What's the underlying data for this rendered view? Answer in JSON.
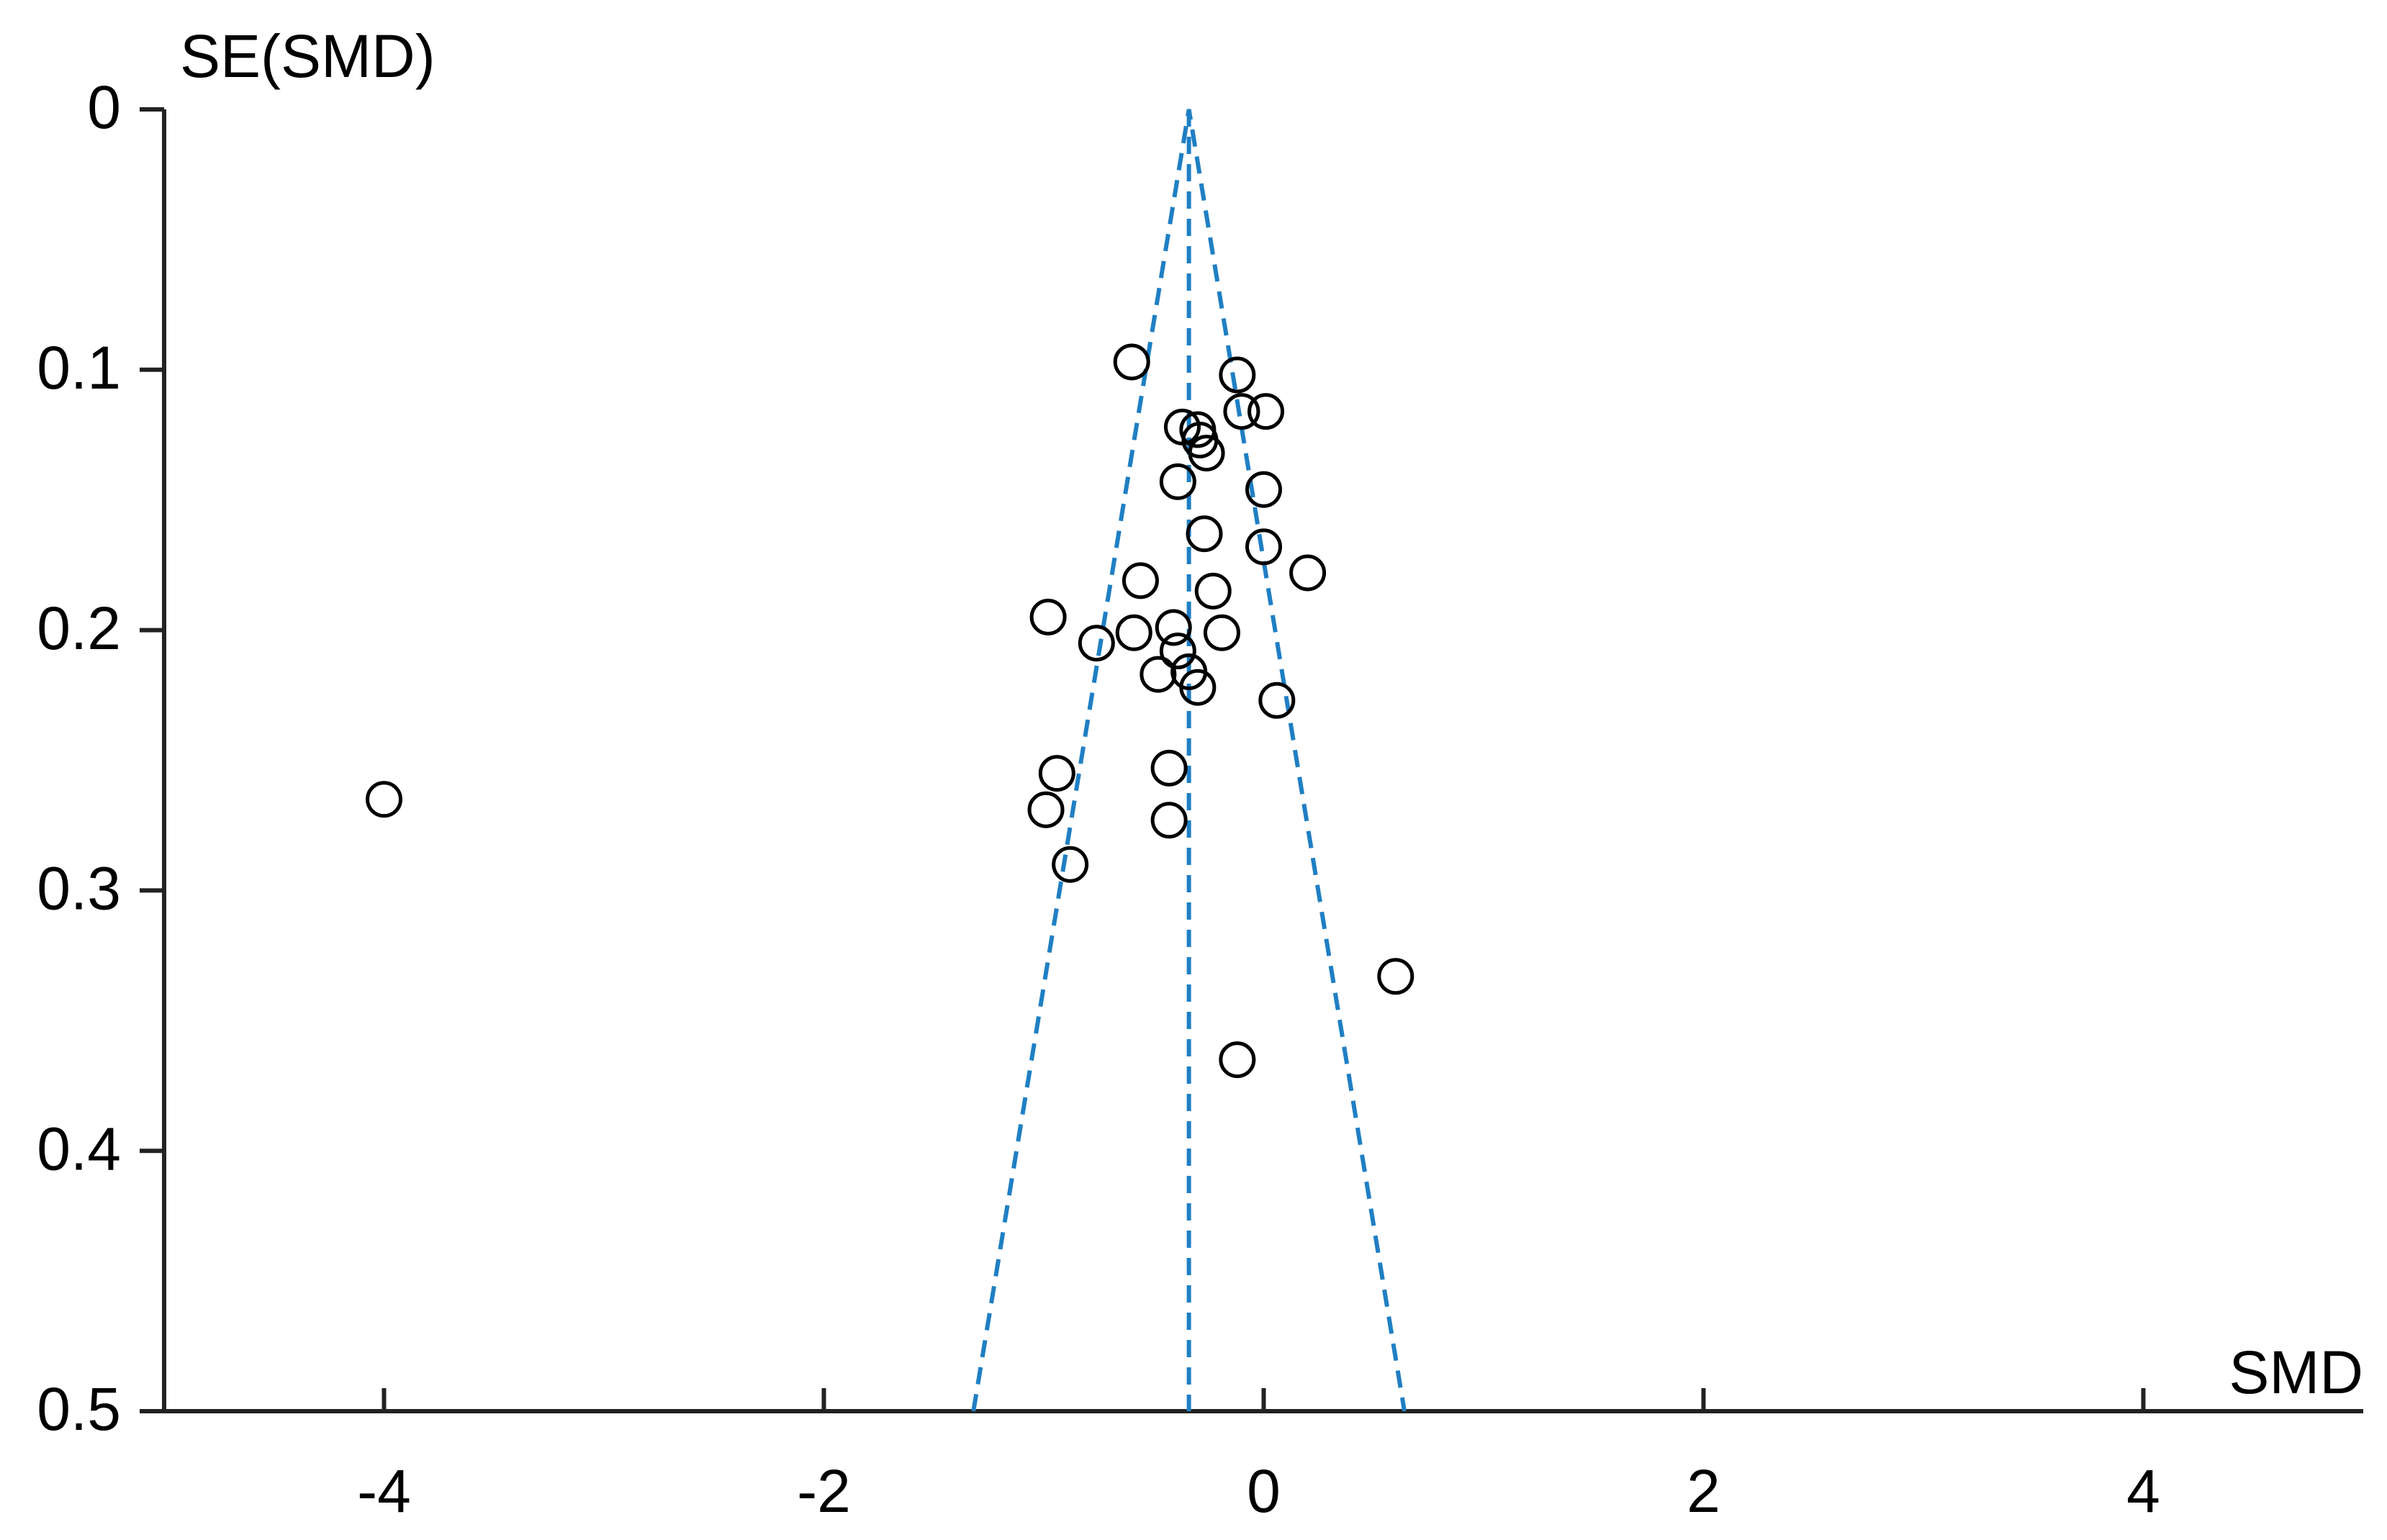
{
  "chart_data": {
    "type": "scatter",
    "y_label": "SE(SMD)",
    "x_label": "SMD",
    "xlim": [
      -5,
      5
    ],
    "ylim": [
      0,
      0.5
    ],
    "y_inverted": true,
    "xticks": [
      -4,
      -2,
      0,
      2,
      4
    ],
    "yticks": [
      0,
      0.1,
      0.2,
      0.3,
      0.4,
      0.5
    ],
    "series": [
      {
        "color": "#000000",
        "x": [
          -0.6,
          -0.12,
          -0.1,
          0.01,
          -0.37,
          -0.3,
          -0.29,
          -0.26,
          -0.39,
          0.0,
          -0.27,
          0.0,
          0.2,
          -0.56,
          -0.23,
          -0.98,
          -0.59,
          -0.41,
          -0.19,
          -0.76,
          -0.39,
          -0.34,
          -0.48,
          -0.3,
          0.06,
          -0.94,
          -0.43,
          -0.99,
          -0.43,
          -0.88,
          -4.0,
          0.6,
          -0.12
        ],
        "values": [
          0.097,
          0.102,
          0.116,
          0.116,
          0.122,
          0.123,
          0.127,
          0.132,
          0.143,
          0.146,
          0.163,
          0.168,
          0.178,
          0.181,
          0.185,
          0.195,
          0.201,
          0.199,
          0.201,
          0.205,
          0.208,
          0.216,
          0.217,
          0.222,
          0.227,
          0.255,
          0.253,
          0.269,
          0.273,
          0.29,
          0.265,
          0.333,
          0.365
        ]
      }
    ],
    "lines": [
      {
        "color": "#1f7fc4",
        "x": [
          -1.32,
          -0.34,
          0.64
        ],
        "values": [
          0.5,
          0,
          0.5
        ]
      },
      {
        "color": "#1f7fc4",
        "x": [
          -0.34,
          -0.34
        ],
        "values": [
          0,
          0.5
        ]
      }
    ]
  }
}
